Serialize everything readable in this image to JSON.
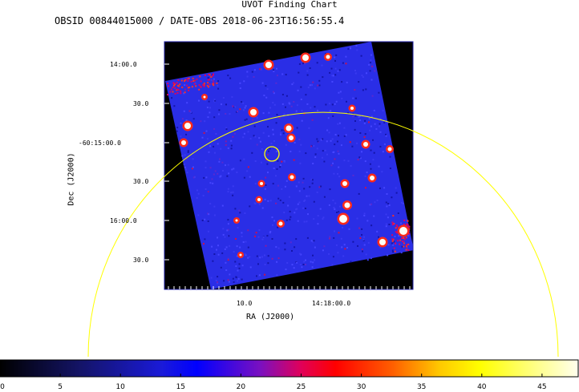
{
  "chart_data": {
    "type": "heatmap",
    "title": "UVOT Finding Chart",
    "subtitle": "OBSID 00844015000 / DATE-OBS 2018-06-23T16:56:55.4",
    "xlabel": "RA (J2000)",
    "ylabel": "Dec (J2000)",
    "x_ticks": [
      "10.0",
      "14:18:00.0"
    ],
    "y_ticks": [
      "14:00.0",
      "30.0",
      "-60:15:00.0",
      "30.0",
      "16:00.0",
      "30.0"
    ],
    "colorbar": {
      "ticks": [
        "0",
        "5",
        "10",
        "15",
        "20",
        "25",
        "30",
        "35",
        "40",
        "45"
      ],
      "range": [
        0,
        48
      ],
      "colors": [
        "#000000",
        "#1a1ad9",
        "#0000ff",
        "#e0005a",
        "#ff0000",
        "#ffc800",
        "#ffff00",
        "#ffffee"
      ]
    },
    "background_color": "#2a2ee6",
    "overlay_colors": {
      "circle": "#ffff00",
      "arc": "#ffff00"
    }
  }
}
